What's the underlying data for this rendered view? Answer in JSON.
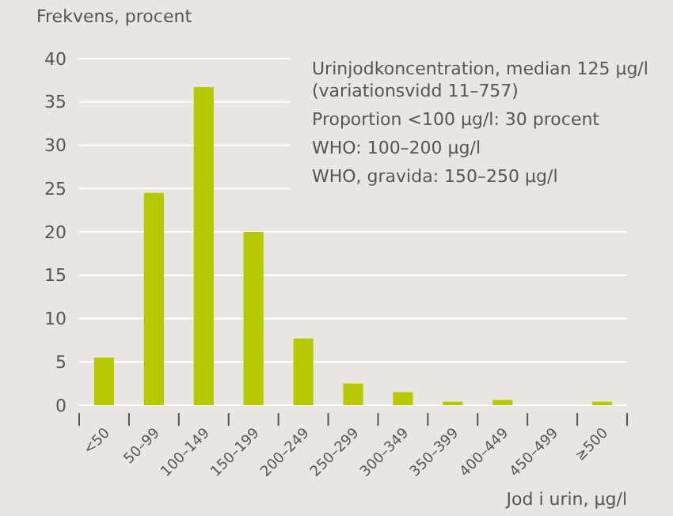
{
  "chart_data": {
    "type": "bar",
    "ylabel": "Frekvens, procent",
    "xlabel": "Jod i urin, µg/l",
    "categories": [
      "<50",
      "50–99",
      "100–149",
      "150–199",
      "200–249",
      "250–299",
      "300–349",
      "350–399",
      "400–449",
      "450–499",
      "≥500"
    ],
    "values": [
      5.5,
      24.5,
      36.7,
      20,
      7.7,
      2.5,
      1.5,
      0.4,
      0.6,
      0,
      0.4
    ],
    "color": "#b5c800",
    "ylim": [
      0,
      40
    ],
    "yticks": [
      0,
      5,
      10,
      15,
      20,
      25,
      30,
      35,
      40
    ],
    "grid": "y",
    "annotations": [
      "Urinjodkoncentration, median 125 µg/l\n(variationsvidd 11–757)",
      "Proportion <100 µg/l: 30 procent",
      "WHO: 100–200 µg/l",
      "WHO, gravida: 150–250 µg/l"
    ]
  }
}
